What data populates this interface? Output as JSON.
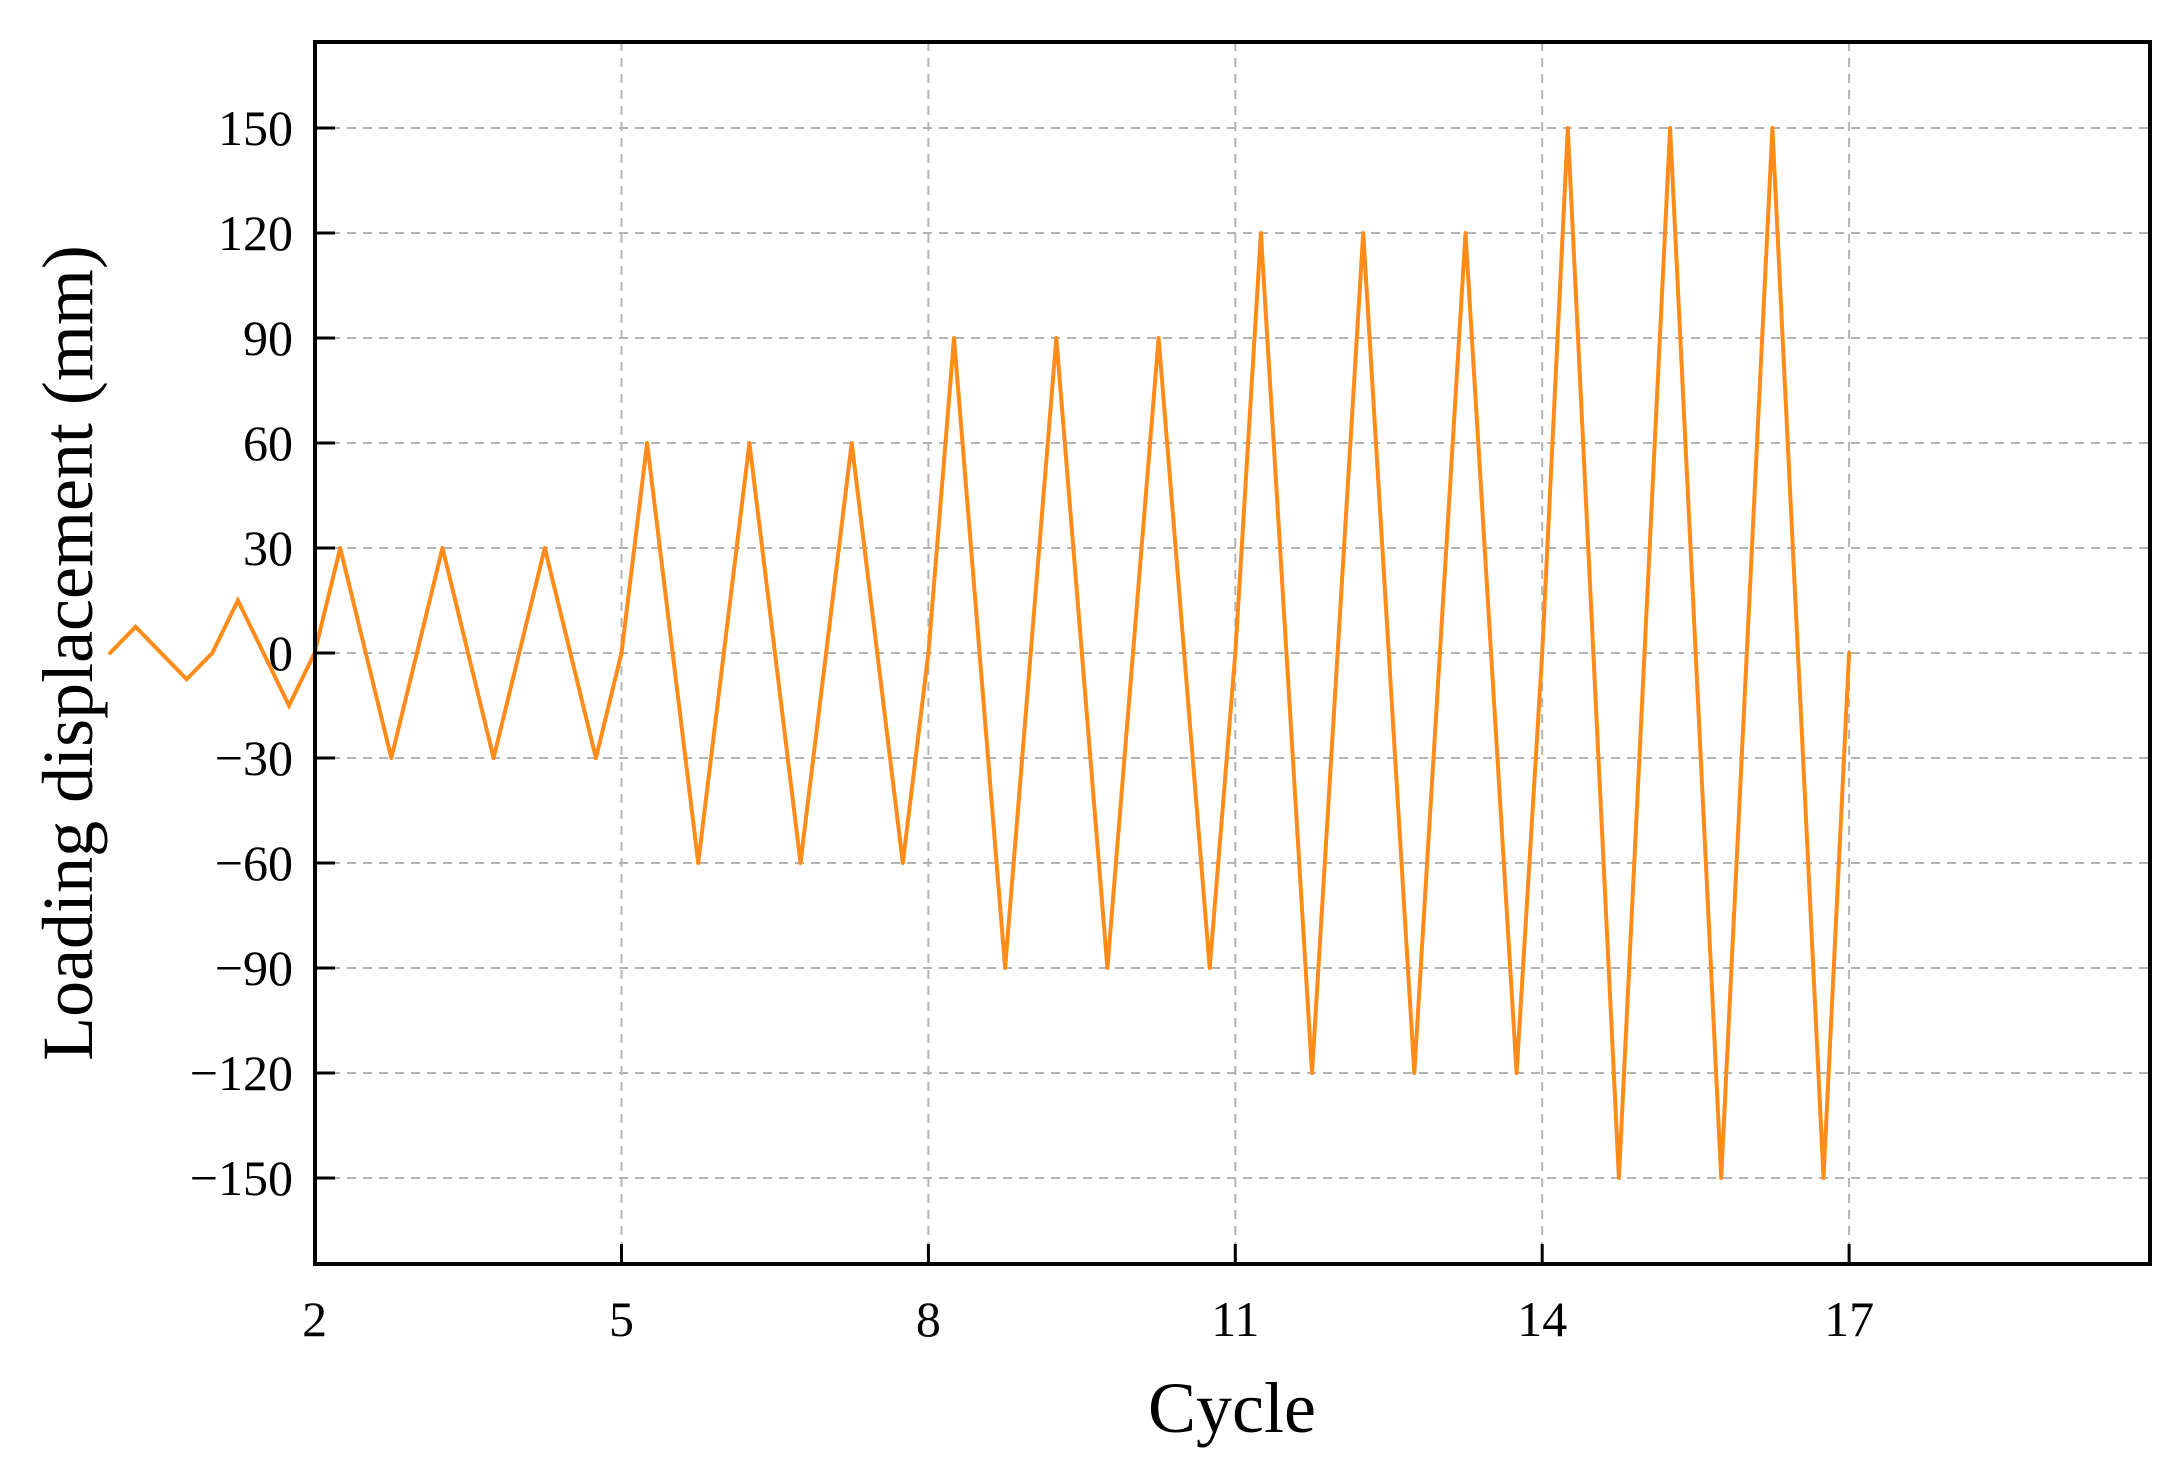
{
  "chart_data": {
    "type": "line",
    "xlabel": "Cycle",
    "ylabel": "Loading displacement (mm)",
    "xlim": [
      0,
      18
    ],
    "ylim": [
      -175,
      175
    ],
    "x_ticks": [
      2,
      5,
      8,
      11,
      14,
      17
    ],
    "y_ticks": [
      150,
      120,
      90,
      60,
      30,
      0,
      -30,
      -60,
      -90,
      -120,
      -150
    ],
    "x_tick_labels": [
      "2",
      "5",
      "8",
      "11",
      "14",
      "17"
    ],
    "y_tick_labels": [
      "150",
      "120",
      "90",
      "60",
      "30",
      "0",
      "−30",
      "−60",
      "−90",
      "−120",
      "−150"
    ],
    "grid": true,
    "line_color": "#FF8C1A",
    "series": [
      {
        "x": [
          0,
          0.25,
          0.75,
          1,
          1.25,
          1.75,
          2,
          2.25,
          2.75,
          3.25,
          3.75,
          4.25,
          4.75,
          5,
          5.25,
          5.75,
          6.25,
          6.75,
          7.25,
          7.75,
          8,
          8.25,
          8.75,
          9.25,
          9.75,
          10.25,
          10.75,
          11,
          11.25,
          11.75,
          12.25,
          12.75,
          13.25,
          13.75,
          14,
          14.25,
          14.75,
          15.25,
          15.75,
          16.25,
          16.75,
          17
        ],
        "y": [
          0,
          7.5,
          -7.5,
          0,
          15,
          -15,
          0,
          30,
          -30,
          30,
          -30,
          30,
          -30,
          0,
          60,
          -60,
          60,
          -60,
          60,
          -60,
          0,
          90,
          -90,
          90,
          -90,
          90,
          -90,
          0,
          120,
          -120,
          120,
          -120,
          120,
          -120,
          0,
          150,
          -150,
          150,
          -150,
          150,
          -150,
          0
        ]
      }
    ]
  }
}
